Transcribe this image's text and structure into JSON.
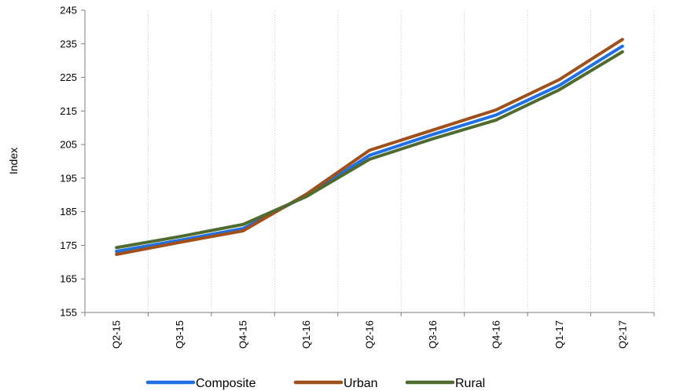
{
  "chart_data": {
    "type": "line",
    "ylabel": "Index",
    "ylim": [
      155,
      245
    ],
    "yticks": [
      "155",
      "165",
      "175",
      "185",
      "195",
      "205",
      "215",
      "225",
      "235",
      "245"
    ],
    "categories": [
      "Q2-15",
      "Q3-15",
      "Q4-15",
      "Q1-16",
      "Q2-16",
      "Q3-16",
      "Q4-16",
      "Q1-17",
      "Q2-17"
    ],
    "grid": {
      "vertical": true,
      "horizontal": false
    },
    "legend_position": "bottom",
    "series": [
      {
        "name": "Composite",
        "color": "#1F6FE5",
        "values": [
          173.2,
          176.5,
          180.0,
          189.8,
          201.8,
          208.0,
          213.8,
          222.6,
          234.3
        ]
      },
      {
        "name": "Urban",
        "color": "#A0501A",
        "values": [
          172.3,
          175.9,
          179.3,
          190.2,
          203.3,
          209.3,
          215.3,
          224.3,
          236.3
        ]
      },
      {
        "name": "Rural",
        "color": "#4F6B2F",
        "values": [
          174.3,
          177.6,
          181.2,
          189.5,
          200.6,
          206.7,
          212.3,
          221.3,
          232.6
        ]
      }
    ]
  }
}
